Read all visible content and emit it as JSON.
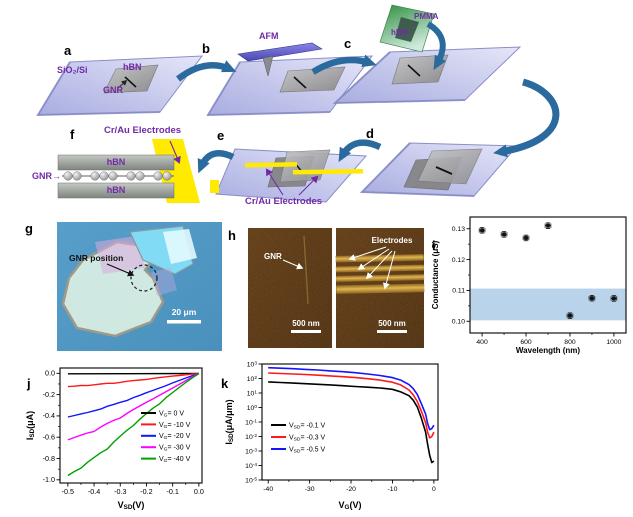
{
  "figure": {
    "background": "#ffffff"
  },
  "panel_letters": {
    "a": "a",
    "b": "b",
    "c": "c",
    "d": "d",
    "e": "e",
    "f": "f",
    "g": "g",
    "h": "h",
    "i": "i",
    "j": "j",
    "k": "k"
  },
  "schematic": {
    "substrate_label": "SiO₂/Si",
    "hbn_label_a": "hBN",
    "gnr_label_a": "GNR",
    "afm_label": "AFM",
    "pmma_label": "PMMA",
    "hbn_label_c": "hBN",
    "electrodes_label_f": "Cr/Au Electrodes",
    "gnr_label_f": "GNR→",
    "hbn_label_f_top": "hBN",
    "hbn_label_f_bottom": "hBN",
    "electrodes_label_e": "Cr/Au Electrodes",
    "label_color": "#7129a8",
    "arrow_color": "#2b6a9e",
    "electrode_color": "#ffea00",
    "pmma_color": "#2f9e44"
  },
  "micrograph_g": {
    "annotation": "GNR position",
    "scale_bar": "20 μm"
  },
  "afm_h": {
    "gnr_label": "GNR",
    "electrodes_label": "Electrodes",
    "scale_bar_left": "500 nm",
    "scale_bar_right": "500 nm"
  },
  "chart_data": [
    {
      "id": "i",
      "type": "scatter",
      "xlabel": "Wavelength (nm)",
      "ylabel": "Conductance (μS)",
      "xlim": [
        345,
        1055
      ],
      "ylim": [
        0.0962,
        0.1338
      ],
      "xticks": [
        {
          "v": 400,
          "label": "400"
        },
        {
          "v": 600,
          "label": "600"
        },
        {
          "v": 800,
          "label": "800"
        },
        {
          "v": 1000,
          "label": "1000"
        }
      ],
      "xminor": [
        500,
        700,
        900
      ],
      "yticks": [
        {
          "v": 0.1,
          "label": "0.10"
        },
        {
          "v": 0.11,
          "label": "0.11"
        },
        {
          "v": 0.12,
          "label": "0.12"
        },
        {
          "v": 0.13,
          "label": "0.13"
        }
      ],
      "yminor": [
        0.105,
        0.115,
        0.125
      ],
      "band": {
        "y0": 0.1003,
        "y1": 0.1106,
        "color": "#b9d4ea"
      },
      "marker_color": "#111111",
      "points": {
        "x": [
          400,
          500,
          600,
          700,
          800,
          900,
          1000
        ],
        "y": [
          0.1295,
          0.1282,
          0.127,
          0.131,
          0.1018,
          0.1075,
          0.1074
        ],
        "xerr": 13,
        "yerr": 0.0009
      },
      "grid": false,
      "legend_position": "none"
    },
    {
      "id": "j",
      "type": "line",
      "xlabel": "V_{SD}(V)",
      "ylabel": "I_{SD}(μA)",
      "xlim": [
        -0.53,
        0.012
      ],
      "ylim": [
        -1.03,
        0.05
      ],
      "xticks": [
        {
          "v": -0.5,
          "label": "-0.5"
        },
        {
          "v": -0.4,
          "label": "-0.4"
        },
        {
          "v": -0.3,
          "label": "-0.3"
        },
        {
          "v": -0.2,
          "label": "-0.2"
        },
        {
          "v": -0.1,
          "label": "-0.1"
        },
        {
          "v": 0,
          "label": "0.0"
        }
      ],
      "xminor": [
        -0.45,
        -0.35,
        -0.25,
        -0.15,
        -0.05
      ],
      "yticks": [
        {
          "v": 0,
          "label": "0.0"
        },
        {
          "v": -0.2,
          "label": "-0.2"
        },
        {
          "v": -0.4,
          "label": "-0.4"
        },
        {
          "v": -0.6,
          "label": "-0.6"
        },
        {
          "v": -0.8,
          "label": "-0.8"
        },
        {
          "v": -1.0,
          "label": "-1.0"
        }
      ],
      "yminor": [
        -0.1,
        -0.3,
        -0.5,
        -0.7,
        -0.9
      ],
      "grid": false,
      "legend_position": "right-center",
      "series": [
        {
          "label": "V_{G}= 0 V",
          "color": "#000000",
          "x": [
            -0.5,
            0
          ],
          "y": [
            -0.004,
            -0.002
          ]
        },
        {
          "label": "V_{G}= -10 V",
          "color": "#ff1a1a",
          "x": [
            -0.5,
            -0.475,
            -0.45,
            -0.425,
            -0.4,
            -0.375,
            -0.35,
            -0.325,
            -0.3,
            -0.275,
            -0.25,
            -0.225,
            -0.2,
            -0.175,
            -0.15,
            -0.125,
            -0.1,
            -0.075,
            -0.05,
            -0.025,
            0
          ],
          "y": [
            -0.125,
            -0.121,
            -0.114,
            -0.115,
            -0.108,
            -0.1,
            -0.094,
            -0.094,
            -0.085,
            -0.075,
            -0.068,
            -0.063,
            -0.057,
            -0.048,
            -0.04,
            -0.033,
            -0.026,
            -0.02,
            -0.014,
            -0.007,
            -0.001
          ]
        },
        {
          "label": "V_{G}= -20 V",
          "color": "#1414ff",
          "x": [
            -0.5,
            -0.475,
            -0.45,
            -0.425,
            -0.4,
            -0.375,
            -0.35,
            -0.325,
            -0.3,
            -0.275,
            -0.25,
            -0.225,
            -0.2,
            -0.175,
            -0.15,
            -0.125,
            -0.1,
            -0.075,
            -0.05,
            -0.025,
            0
          ],
          "y": [
            -0.41,
            -0.396,
            -0.381,
            -0.368,
            -0.352,
            -0.336,
            -0.31,
            -0.292,
            -0.272,
            -0.256,
            -0.228,
            -0.206,
            -0.182,
            -0.16,
            -0.138,
            -0.115,
            -0.09,
            -0.067,
            -0.044,
            -0.022,
            -0.002
          ]
        },
        {
          "label": "V_{G}= -30 V",
          "color": "#ff00ff",
          "x": [
            -0.5,
            -0.475,
            -0.45,
            -0.425,
            -0.4,
            -0.375,
            -0.35,
            -0.325,
            -0.3,
            -0.275,
            -0.25,
            -0.225,
            -0.2,
            -0.175,
            -0.15,
            -0.125,
            -0.1,
            -0.075,
            -0.05,
            -0.025,
            0
          ],
          "y": [
            -0.625,
            -0.603,
            -0.58,
            -0.56,
            -0.545,
            -0.505,
            -0.47,
            -0.442,
            -0.42,
            -0.377,
            -0.34,
            -0.306,
            -0.272,
            -0.24,
            -0.206,
            -0.172,
            -0.138,
            -0.104,
            -0.068,
            -0.034,
            -0.002
          ]
        },
        {
          "label": "V_{G}= -40 V",
          "color": "#00a000",
          "x": [
            -0.5,
            -0.475,
            -0.45,
            -0.425,
            -0.4,
            -0.375,
            -0.35,
            -0.325,
            -0.3,
            -0.275,
            -0.25,
            -0.225,
            -0.2,
            -0.175,
            -0.15,
            -0.125,
            -0.1,
            -0.075,
            -0.05,
            -0.025,
            0
          ],
          "y": [
            -0.96,
            -0.922,
            -0.89,
            -0.836,
            -0.79,
            -0.746,
            -0.712,
            -0.646,
            -0.59,
            -0.536,
            -0.49,
            -0.43,
            -0.378,
            -0.328,
            -0.286,
            -0.228,
            -0.18,
            -0.132,
            -0.086,
            -0.042,
            -0.003
          ]
        }
      ]
    },
    {
      "id": "k",
      "type": "line",
      "yscale": "log",
      "xlabel": "V_{G}(V)",
      "ylabel": "I_{SD}(μA/μm)",
      "xlim": [
        -41.5,
        1
      ],
      "ylog": [
        -5,
        3
      ],
      "xticks": [
        {
          "v": -40,
          "label": "-40"
        },
        {
          "v": -30,
          "label": "-30"
        },
        {
          "v": -20,
          "label": "-20"
        },
        {
          "v": -10,
          "label": "-10"
        },
        {
          "v": 0,
          "label": "0"
        }
      ],
      "xminor": [
        -35,
        -25,
        -15,
        -5
      ],
      "yticks": [
        {
          "v": 1000,
          "label": "10^{3}"
        },
        {
          "v": 100,
          "label": "10^{2}"
        },
        {
          "v": 10,
          "label": "10^{1}"
        },
        {
          "v": 1,
          "label": "10^{0}"
        },
        {
          "v": 0.1,
          "label": "10^{-1}"
        },
        {
          "v": 0.01,
          "label": "10^{-2}"
        },
        {
          "v": 0.001,
          "label": "10^{-3}"
        },
        {
          "v": 0.0001,
          "label": "10^{-4}"
        },
        {
          "v": 1e-05,
          "label": "10^{-5}"
        }
      ],
      "grid": false,
      "legend_position": "left-center",
      "series": [
        {
          "label": "V_{SD}= -0.1 V",
          "color": "#000000",
          "x": [
            -40,
            -37,
            -34,
            -31,
            -28,
            -25,
            -22,
            -19,
            -16,
            -13,
            -10,
            -8,
            -6,
            -5,
            -4,
            -3,
            -2,
            -1.5,
            -1,
            -0.5,
            0
          ],
          "y": [
            58,
            53,
            48,
            44,
            40,
            36,
            32,
            28,
            25,
            22,
            18,
            12,
            6.5,
            3.2,
            1.1,
            0.18,
            0.02,
            0.003,
            0.0005,
            0.00016,
            0.0002
          ]
        },
        {
          "label": "V_{SD}= -0.3 V",
          "color": "#ff1a1a",
          "x": [
            -40,
            -37,
            -34,
            -31,
            -28,
            -25,
            -22,
            -19,
            -16,
            -13,
            -10,
            -8,
            -6,
            -5,
            -4,
            -3,
            -2,
            -1.5,
            -1,
            -0.5,
            0
          ],
          "y": [
            240,
            222,
            205,
            188,
            170,
            152,
            134,
            116,
            97,
            78,
            56,
            36,
            16,
            7.5,
            2.6,
            0.55,
            0.09,
            0.02,
            0.008,
            0.01,
            0.02
          ]
        },
        {
          "label": "V_{SD}= -0.5 V",
          "color": "#1414ff",
          "x": [
            -40,
            -37,
            -34,
            -31,
            -28,
            -25,
            -22,
            -19,
            -16,
            -13,
            -10,
            -8,
            -6,
            -5,
            -4,
            -3,
            -2,
            -1.5,
            -1,
            -0.5,
            0
          ],
          "y": [
            560,
            515,
            475,
            425,
            385,
            335,
            295,
            250,
            205,
            160,
            115,
            78,
            38,
            20,
            8,
            1.8,
            0.35,
            0.08,
            0.03,
            0.035,
            0.06
          ]
        }
      ]
    }
  ]
}
